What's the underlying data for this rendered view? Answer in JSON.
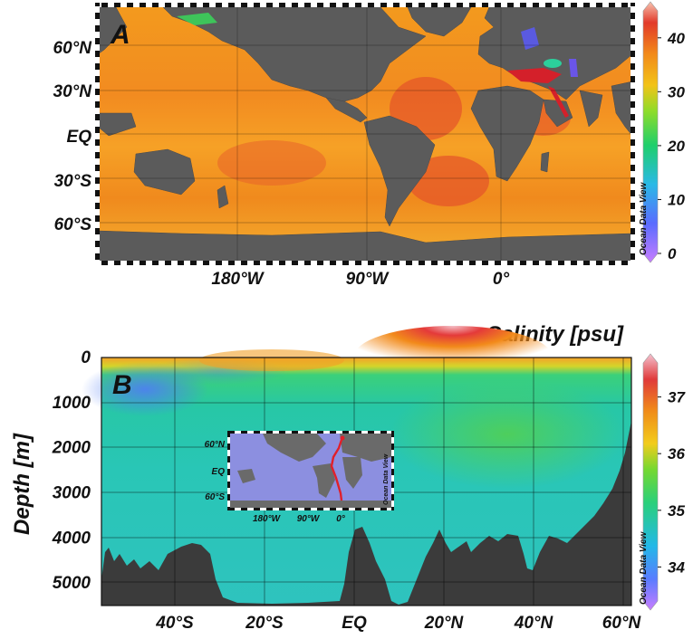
{
  "chart_data": [
    {
      "panel": "A",
      "type": "heatmap",
      "title": "",
      "description_text_free": true,
      "x_tick_labels": [
        "180°W",
        "90°W",
        "0°"
      ],
      "y_tick_labels": [
        "60°N",
        "30°N",
        "EQ",
        "30°S",
        "60°S"
      ],
      "colorbar": {
        "min": 0,
        "max": 45,
        "ticks": [
          0,
          10,
          20,
          30,
          40
        ]
      },
      "watermark": "Ocean Data View"
    },
    {
      "panel": "B",
      "type": "heatmap",
      "title": "Salinity [psu]",
      "ylabel": "Depth [m]",
      "ylim": [
        5500,
        0
      ],
      "y_ticks": [
        0,
        1000,
        2000,
        3000,
        4000,
        5000
      ],
      "x_tick_labels": [
        "40°S",
        "20°S",
        "EQ",
        "20°N",
        "40°N",
        "60°N"
      ],
      "colorbar": {
        "min": 33.4,
        "max": 37.6,
        "ticks": [
          34,
          35,
          36,
          37
        ]
      },
      "watermark": "Ocean Data View",
      "inset": {
        "y_tick_labels": [
          "60°N",
          "EQ",
          "60°S"
        ],
        "x_tick_labels": [
          "180°W",
          "90°W",
          "0°"
        ],
        "watermark": "Ocean Data View"
      }
    }
  ],
  "labels": {
    "panel_a": "A",
    "panel_b": "B"
  }
}
